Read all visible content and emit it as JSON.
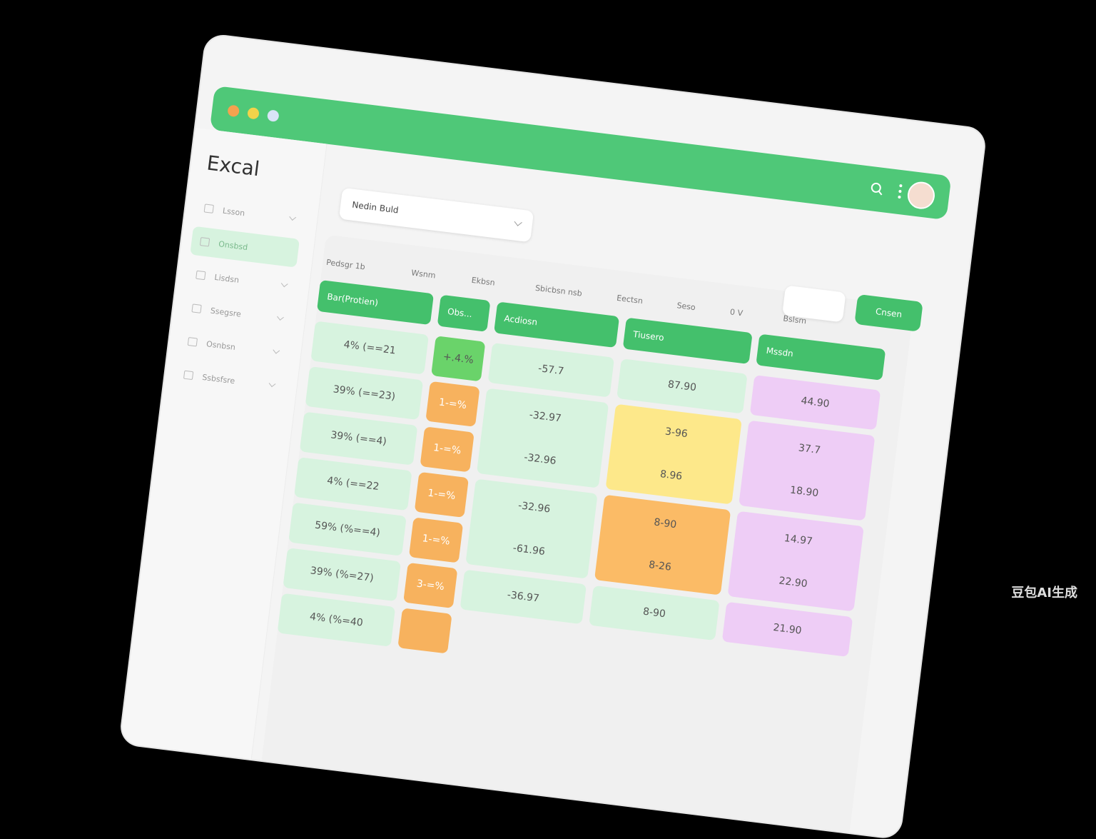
{
  "app_title": "Excal",
  "sidebar": {
    "items": [
      "Lsson",
      "Onsbsd",
      "Lisdsn",
      "Ssegsre",
      "Osnbsn",
      "Ssbsfsre"
    ]
  },
  "dropdown": "Nedin Buld",
  "open_button": "Cnsen",
  "table": {
    "headers": [
      "Pedsgr 1b",
      "Wsnm",
      "Ekbsn",
      "Sbicbsn nsb",
      "Eectsn",
      "Seso",
      "0 V",
      "Bslsm"
    ],
    "tiles": [
      "Bar(Protien)",
      "Obs...",
      "Acdiosn",
      "Tiusero",
      "Mssdn"
    ],
    "columns": [
      [
        [
          "4% (==21"
        ],
        [
          "39% (==23)"
        ],
        [
          "39% (==4)"
        ],
        [
          "4% (==22"
        ],
        [
          "59% (%==4)"
        ],
        [
          "39% (%=27)"
        ],
        [
          "4% (%=40"
        ]
      ],
      [
        [
          "+.4.%"
        ],
        [
          "1-=%"
        ],
        [
          "1-=%"
        ],
        [
          "1-=%"
        ],
        [
          "1-=%"
        ],
        [
          "3-=%"
        ],
        [
          ""
        ]
      ],
      [
        [
          "-57.7"
        ],
        [
          "-32.97",
          "-32.96"
        ],
        [
          "-32.96",
          "-61.96"
        ],
        [
          "-36.97"
        ]
      ],
      [
        [
          "87.90"
        ],
        [
          "3-96",
          "8.96"
        ],
        [
          "8-90",
          "8-26"
        ],
        [
          "8-90"
        ]
      ],
      [
        [
          "44.90"
        ],
        [
          "37.7",
          "18.90"
        ],
        [
          "14.97",
          "22.90"
        ],
        [
          "21.90"
        ]
      ]
    ]
  },
  "watermark": "豆包AI生成"
}
